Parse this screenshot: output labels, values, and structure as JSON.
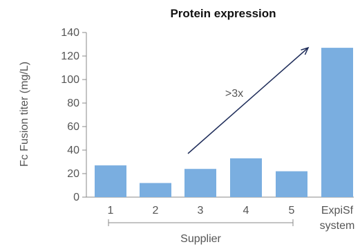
{
  "chart_data": {
    "type": "bar",
    "title": "Protein expression",
    "ylabel": "Fc Fusion titer (mg/L)",
    "categories": [
      "1",
      "2",
      "3",
      "4",
      "5",
      "ExpiSf"
    ],
    "category_sublabel": {
      "ExpiSf": "system"
    },
    "values": [
      27,
      12,
      24,
      33,
      22,
      127
    ],
    "ylim": [
      0,
      140
    ],
    "yticks": [
      "0",
      "20",
      "40",
      "60",
      "80",
      "100",
      "120",
      "140"
    ],
    "bar_color": "#7aaee0",
    "group_label": "Supplier",
    "group_categories": [
      "1",
      "2",
      "3",
      "4",
      "5"
    ],
    "annotation": {
      "text": ">3x",
      "type": "arrow",
      "color": "#1f2d5a"
    },
    "grid": false
  }
}
